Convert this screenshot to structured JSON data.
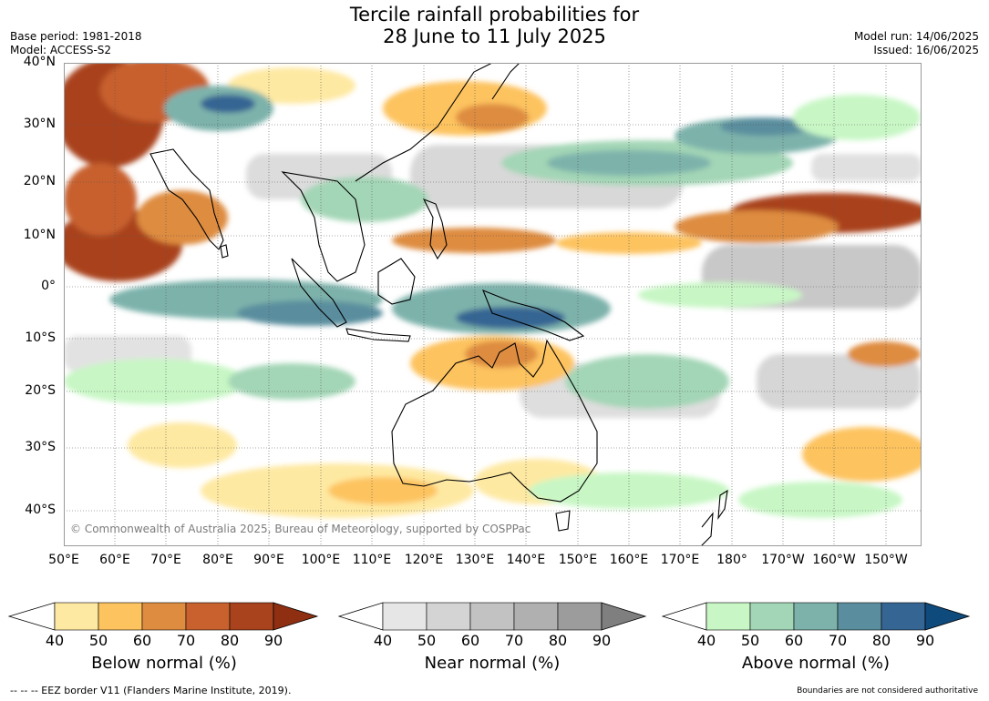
{
  "title": {
    "line1": "Tercile rainfall probabilities for",
    "line2": "28 June to 11 July 2025"
  },
  "meta_left": {
    "base_period": "Base period: 1981-2018",
    "model": "Model: ACCESS-S2"
  },
  "meta_right": {
    "model_run": "Model run: 14/06/2025",
    "issued": "Issued: 16/06/2025"
  },
  "map": {
    "copyright": "© Commonwealth of Australia 2025, Bureau of Meteorology, supported by COSPPac",
    "lat_labels": [
      "40°N",
      "30°N",
      "20°N",
      "10°N",
      "0°",
      "10°S",
      "20°S",
      "30°S",
      "40°S"
    ],
    "lon_labels": [
      "50°E",
      "60°E",
      "70°E",
      "80°E",
      "90°E",
      "100°E",
      "110°E",
      "120°E",
      "130°E",
      "140°E",
      "150°E",
      "160°E",
      "170°E",
      "180°",
      "170°W",
      "160°W",
      "150°W"
    ]
  },
  "colorbars": [
    {
      "title": "Below normal (%)",
      "ticks": [
        "40",
        "50",
        "60",
        "70",
        "80",
        "90"
      ],
      "colors": [
        "#ffffff",
        "#fee9a2",
        "#fdc35f",
        "#de8c40",
        "#c8612e",
        "#a9431d",
        "#8e2f12"
      ]
    },
    {
      "title": "Near normal (%)",
      "ticks": [
        "40",
        "50",
        "60",
        "70",
        "80",
        "90"
      ],
      "colors": [
        "#ffffff",
        "#e6e6e6",
        "#d4d4d4",
        "#c2c2c2",
        "#b0b0b0",
        "#9c9c9c",
        "#7f7f7f"
      ]
    },
    {
      "title": "Above normal (%)",
      "ticks": [
        "40",
        "50",
        "60",
        "70",
        "80",
        "90"
      ],
      "colors": [
        "#ffffff",
        "#c8f7c5",
        "#a3d6b6",
        "#7db2ab",
        "#5a8e9e",
        "#356593",
        "#0f4a7d"
      ]
    }
  ],
  "footer": {
    "left": "--  --  -- EEZ border V11 (Flanders Marine Institute, 2019).",
    "right": "Boundaries are not considered authoritative"
  }
}
